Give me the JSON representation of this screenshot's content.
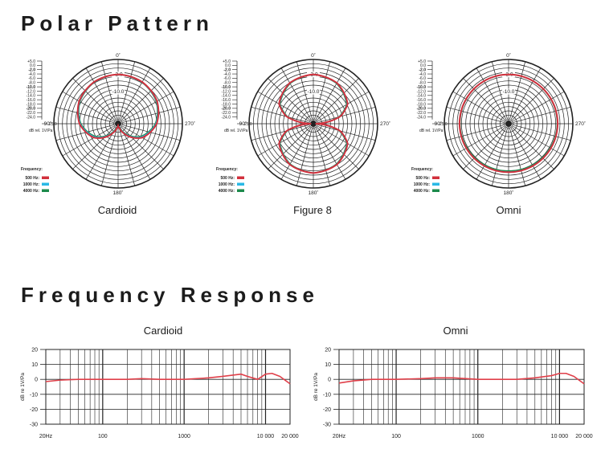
{
  "sections": {
    "polar_title": "Polar Pattern",
    "freq_title": "Frequency Response"
  },
  "polar_common": {
    "scale_ticks": [
      "+5.0",
      "0.0",
      "-2.0",
      "-4.0",
      "-6.0",
      "-8.0",
      "-10.0",
      "-12.0",
      "-14.0",
      "-16.0",
      "-18.0",
      "-20.0",
      "-22.0",
      "-24.0"
    ],
    "bold_ticks": [
      "-2.0",
      "-10.0",
      "-20.0"
    ],
    "scale_min_label": "-25.0",
    "unit_label": "dB rel. 1V/Pa",
    "angle_labels": {
      "top": "0˚",
      "left": "90˚",
      "right": "270˚",
      "bottom": "180˚"
    },
    "ring_labels": [
      "-2.0",
      "-10.0"
    ],
    "frequency_heading": "Frequency:",
    "legend": [
      {
        "label": "500 Hz:",
        "color": "#d2303c"
      },
      {
        "label": "1000 Hz:",
        "color": "#29b8e6"
      },
      {
        "label": "4000 Hz:",
        "color": "#1c8a4c"
      }
    ]
  },
  "freq_common": {
    "y_ticks": [
      "20",
      "10",
      "0",
      "-10",
      "-20",
      "-30"
    ],
    "y_label": "dB re 1V/Pa",
    "x_ticks": [
      "20Hz",
      "100",
      "1000",
      "10 000",
      "20 000"
    ],
    "line_color": "#e0404a"
  },
  "chart_data": [
    {
      "type": "line",
      "subtype": "polar",
      "caption": "Cardioid",
      "r_range_db": [
        -25,
        5
      ],
      "series": [
        {
          "name": "500 Hz",
          "color": "#d2303c",
          "angles_deg": [
            0,
            30,
            60,
            90,
            120,
            150,
            165,
            180
          ],
          "values_db": [
            -2,
            -2.5,
            -4,
            -7,
            -12,
            -20,
            -23,
            -24
          ]
        },
        {
          "name": "1000 Hz",
          "color": "#29b8e6",
          "angles_deg": [
            0,
            30,
            60,
            90,
            120,
            150,
            165,
            180
          ],
          "values_db": [
            -2,
            -2.6,
            -4.2,
            -7.3,
            -12.5,
            -20.5,
            -23.5,
            -24
          ]
        },
        {
          "name": "4000 Hz",
          "color": "#1c8a4c",
          "angles_deg": [
            0,
            30,
            60,
            90,
            120,
            150,
            165,
            180
          ],
          "values_db": [
            -2,
            -2.7,
            -4.4,
            -7.6,
            -13,
            -21,
            -23.8,
            -24
          ]
        }
      ]
    },
    {
      "type": "line",
      "subtype": "polar",
      "caption": "Figure 8",
      "r_range_db": [
        -25,
        5
      ],
      "series": [
        {
          "name": "500 Hz",
          "color": "#d2303c",
          "angles_deg": [
            0,
            30,
            60,
            75,
            90,
            105,
            120,
            150,
            180
          ],
          "values_db": [
            -2,
            -3,
            -6.5,
            -12,
            -24,
            -12,
            -6.5,
            -3,
            -2
          ]
        },
        {
          "name": "1000 Hz",
          "color": "#29b8e6",
          "angles_deg": [
            0,
            30,
            60,
            75,
            90,
            105,
            120,
            150,
            180
          ],
          "values_db": [
            -2,
            -3.1,
            -6.7,
            -12.2,
            -24,
            -12.2,
            -6.7,
            -3.1,
            -2
          ]
        },
        {
          "name": "4000 Hz",
          "color": "#1c8a4c",
          "angles_deg": [
            0,
            30,
            60,
            75,
            90,
            105,
            120,
            150,
            180
          ],
          "values_db": [
            -2,
            -3.3,
            -7,
            -12.6,
            -24,
            -12.6,
            -7,
            -3.3,
            -2
          ]
        }
      ]
    },
    {
      "type": "line",
      "subtype": "polar",
      "caption": "Omni",
      "r_range_db": [
        -25,
        5
      ],
      "series": [
        {
          "name": "500 Hz",
          "color": "#d2303c",
          "angles_deg": [
            0,
            90,
            180
          ],
          "values_db": [
            -2,
            -2.1,
            -2.4
          ]
        },
        {
          "name": "1000 Hz",
          "color": "#29b8e6",
          "angles_deg": [
            0,
            90,
            180
          ],
          "values_db": [
            -2,
            -2.15,
            -2.5
          ]
        },
        {
          "name": "4000 Hz",
          "color": "#1c8a4c",
          "angles_deg": [
            0,
            90,
            180
          ],
          "values_db": [
            -2,
            -2.3,
            -3
          ]
        }
      ]
    },
    {
      "type": "line",
      "caption": "Cardioid",
      "xscale": "log",
      "xlim": [
        20,
        20000
      ],
      "ylim": [
        -30,
        20
      ],
      "ylabel": "dB re 1V/Pa",
      "x": [
        20,
        30,
        50,
        100,
        200,
        300,
        500,
        1000,
        2000,
        3000,
        5000,
        6000,
        8000,
        10000,
        12000,
        15000,
        20000
      ],
      "values": [
        -1.5,
        -0.5,
        0,
        0,
        0,
        0.5,
        0,
        0,
        1,
        2,
        3.5,
        2,
        0,
        3.5,
        4,
        2,
        -3
      ]
    },
    {
      "type": "line",
      "caption": "Omni",
      "xscale": "log",
      "xlim": [
        20,
        20000
      ],
      "ylim": [
        -30,
        20
      ],
      "ylabel": "dB re 1V/Pa",
      "x": [
        20,
        30,
        50,
        100,
        200,
        300,
        500,
        1000,
        2000,
        3000,
        5000,
        8000,
        10000,
        12000,
        15000,
        20000
      ],
      "values": [
        -2.5,
        -1,
        0,
        0,
        0.5,
        1,
        1,
        0,
        0,
        0,
        1,
        2.5,
        4,
        4,
        2,
        -3
      ]
    }
  ]
}
